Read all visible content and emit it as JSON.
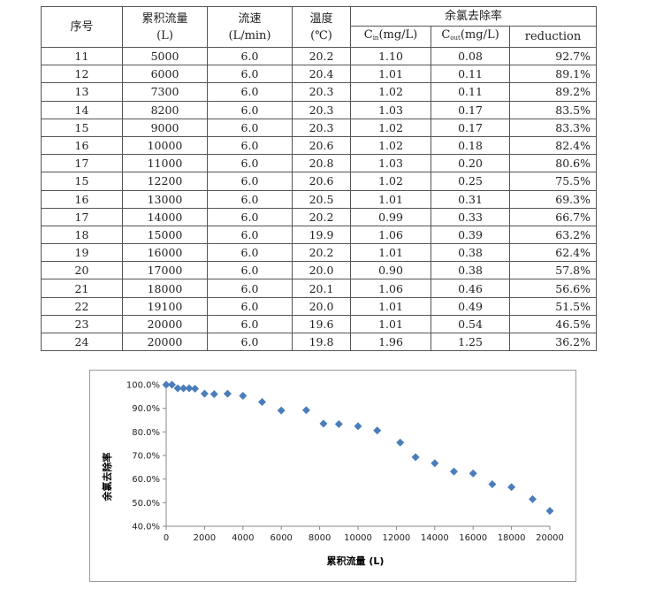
{
  "table": {
    "headers": {
      "seq": "序号",
      "flow": "累积流量",
      "flow_unit": "(L)",
      "speed": "流速",
      "speed_unit": "(L/min)",
      "temp": "温度",
      "temp_unit": "(℃)",
      "group": "余氯去除率",
      "cin_prefix": "C",
      "cin_sub": "in",
      "cin_suffix": "(mg/L)",
      "cout_prefix": "C",
      "cout_sub": "out",
      "cout_suffix": "(mg/L)",
      "reduction": "reduction"
    },
    "rows": [
      [
        "11",
        "5000",
        "6.0",
        "20.2",
        "1.10",
        "0.08",
        "92.7%"
      ],
      [
        "12",
        "6000",
        "6.0",
        "20.4",
        "1.01",
        "0.11",
        "89.1%"
      ],
      [
        "13",
        "7300",
        "6.0",
        "20.3",
        "1.02",
        "0.11",
        "89.2%"
      ],
      [
        "14",
        "8200",
        "6.0",
        "20.3",
        "1.03",
        "0.17",
        "83.5%"
      ],
      [
        "15",
        "9000",
        "6.0",
        "20.3",
        "1.02",
        "0.17",
        "83.3%"
      ],
      [
        "16",
        "10000",
        "6.0",
        "20.6",
        "1.02",
        "0.18",
        "82.4%"
      ],
      [
        "17",
        "11000",
        "6.0",
        "20.8",
        "1.03",
        "0.20",
        "80.6%"
      ],
      [
        "15",
        "12200",
        "6.0",
        "20.6",
        "1.02",
        "0.25",
        "75.5%"
      ],
      [
        "16",
        "13000",
        "6.0",
        "20.5",
        "1.01",
        "0.31",
        "69.3%"
      ],
      [
        "17",
        "14000",
        "6.0",
        "20.2",
        "0.99",
        "0.33",
        "66.7%"
      ],
      [
        "18",
        "15000",
        "6.0",
        "19.9",
        "1.06",
        "0.39",
        "63.2%"
      ],
      [
        "19",
        "16000",
        "6.0",
        "20.2",
        "1.01",
        "0.38",
        "62.4%"
      ],
      [
        "20",
        "17000",
        "6.0",
        "20.0",
        "0.90",
        "0.38",
        "57.8%"
      ],
      [
        "21",
        "18000",
        "6.0",
        "20.1",
        "1.06",
        "0.46",
        "56.6%"
      ],
      [
        "22",
        "19100",
        "6.0",
        "20.0",
        "1.01",
        "0.49",
        "51.5%"
      ],
      [
        "23",
        "20000",
        "6.0",
        "19.6",
        "1.01",
        "0.54",
        "46.5%"
      ],
      [
        "24",
        "20000",
        "6.0",
        "19.8",
        "1.96",
        "1.25",
        "36.2%"
      ]
    ]
  },
  "chart_data": {
    "type": "scatter",
    "xlabel": "累积流量 (L)",
    "ylabel": "余氯去除率",
    "xlim": [
      0,
      20000
    ],
    "ylim": [
      0.4,
      1.0
    ],
    "x_ticks": [
      "0",
      "2000",
      "4000",
      "6000",
      "8000",
      "10000",
      "12000",
      "14000",
      "16000",
      "18000",
      "20000"
    ],
    "y_ticks": [
      "40.0%",
      "50.0%",
      "60.0%",
      "70.0%",
      "80.0%",
      "90.0%",
      "100.0%"
    ],
    "grid": false,
    "marker_color": "#4a7ebb",
    "x": [
      0,
      300,
      600,
      900,
      1200,
      1500,
      2000,
      2500,
      3200,
      4000,
      5000,
      6000,
      7300,
      8200,
      9000,
      10000,
      11000,
      12200,
      13000,
      14000,
      15000,
      16000,
      17000,
      18000,
      19100,
      20000
    ],
    "y": [
      1.0,
      1.0,
      0.985,
      0.985,
      0.985,
      0.983,
      0.962,
      0.96,
      0.962,
      0.953,
      0.927,
      0.891,
      0.892,
      0.835,
      0.833,
      0.824,
      0.806,
      0.755,
      0.693,
      0.667,
      0.632,
      0.624,
      0.578,
      0.566,
      0.515,
      0.465
    ]
  }
}
